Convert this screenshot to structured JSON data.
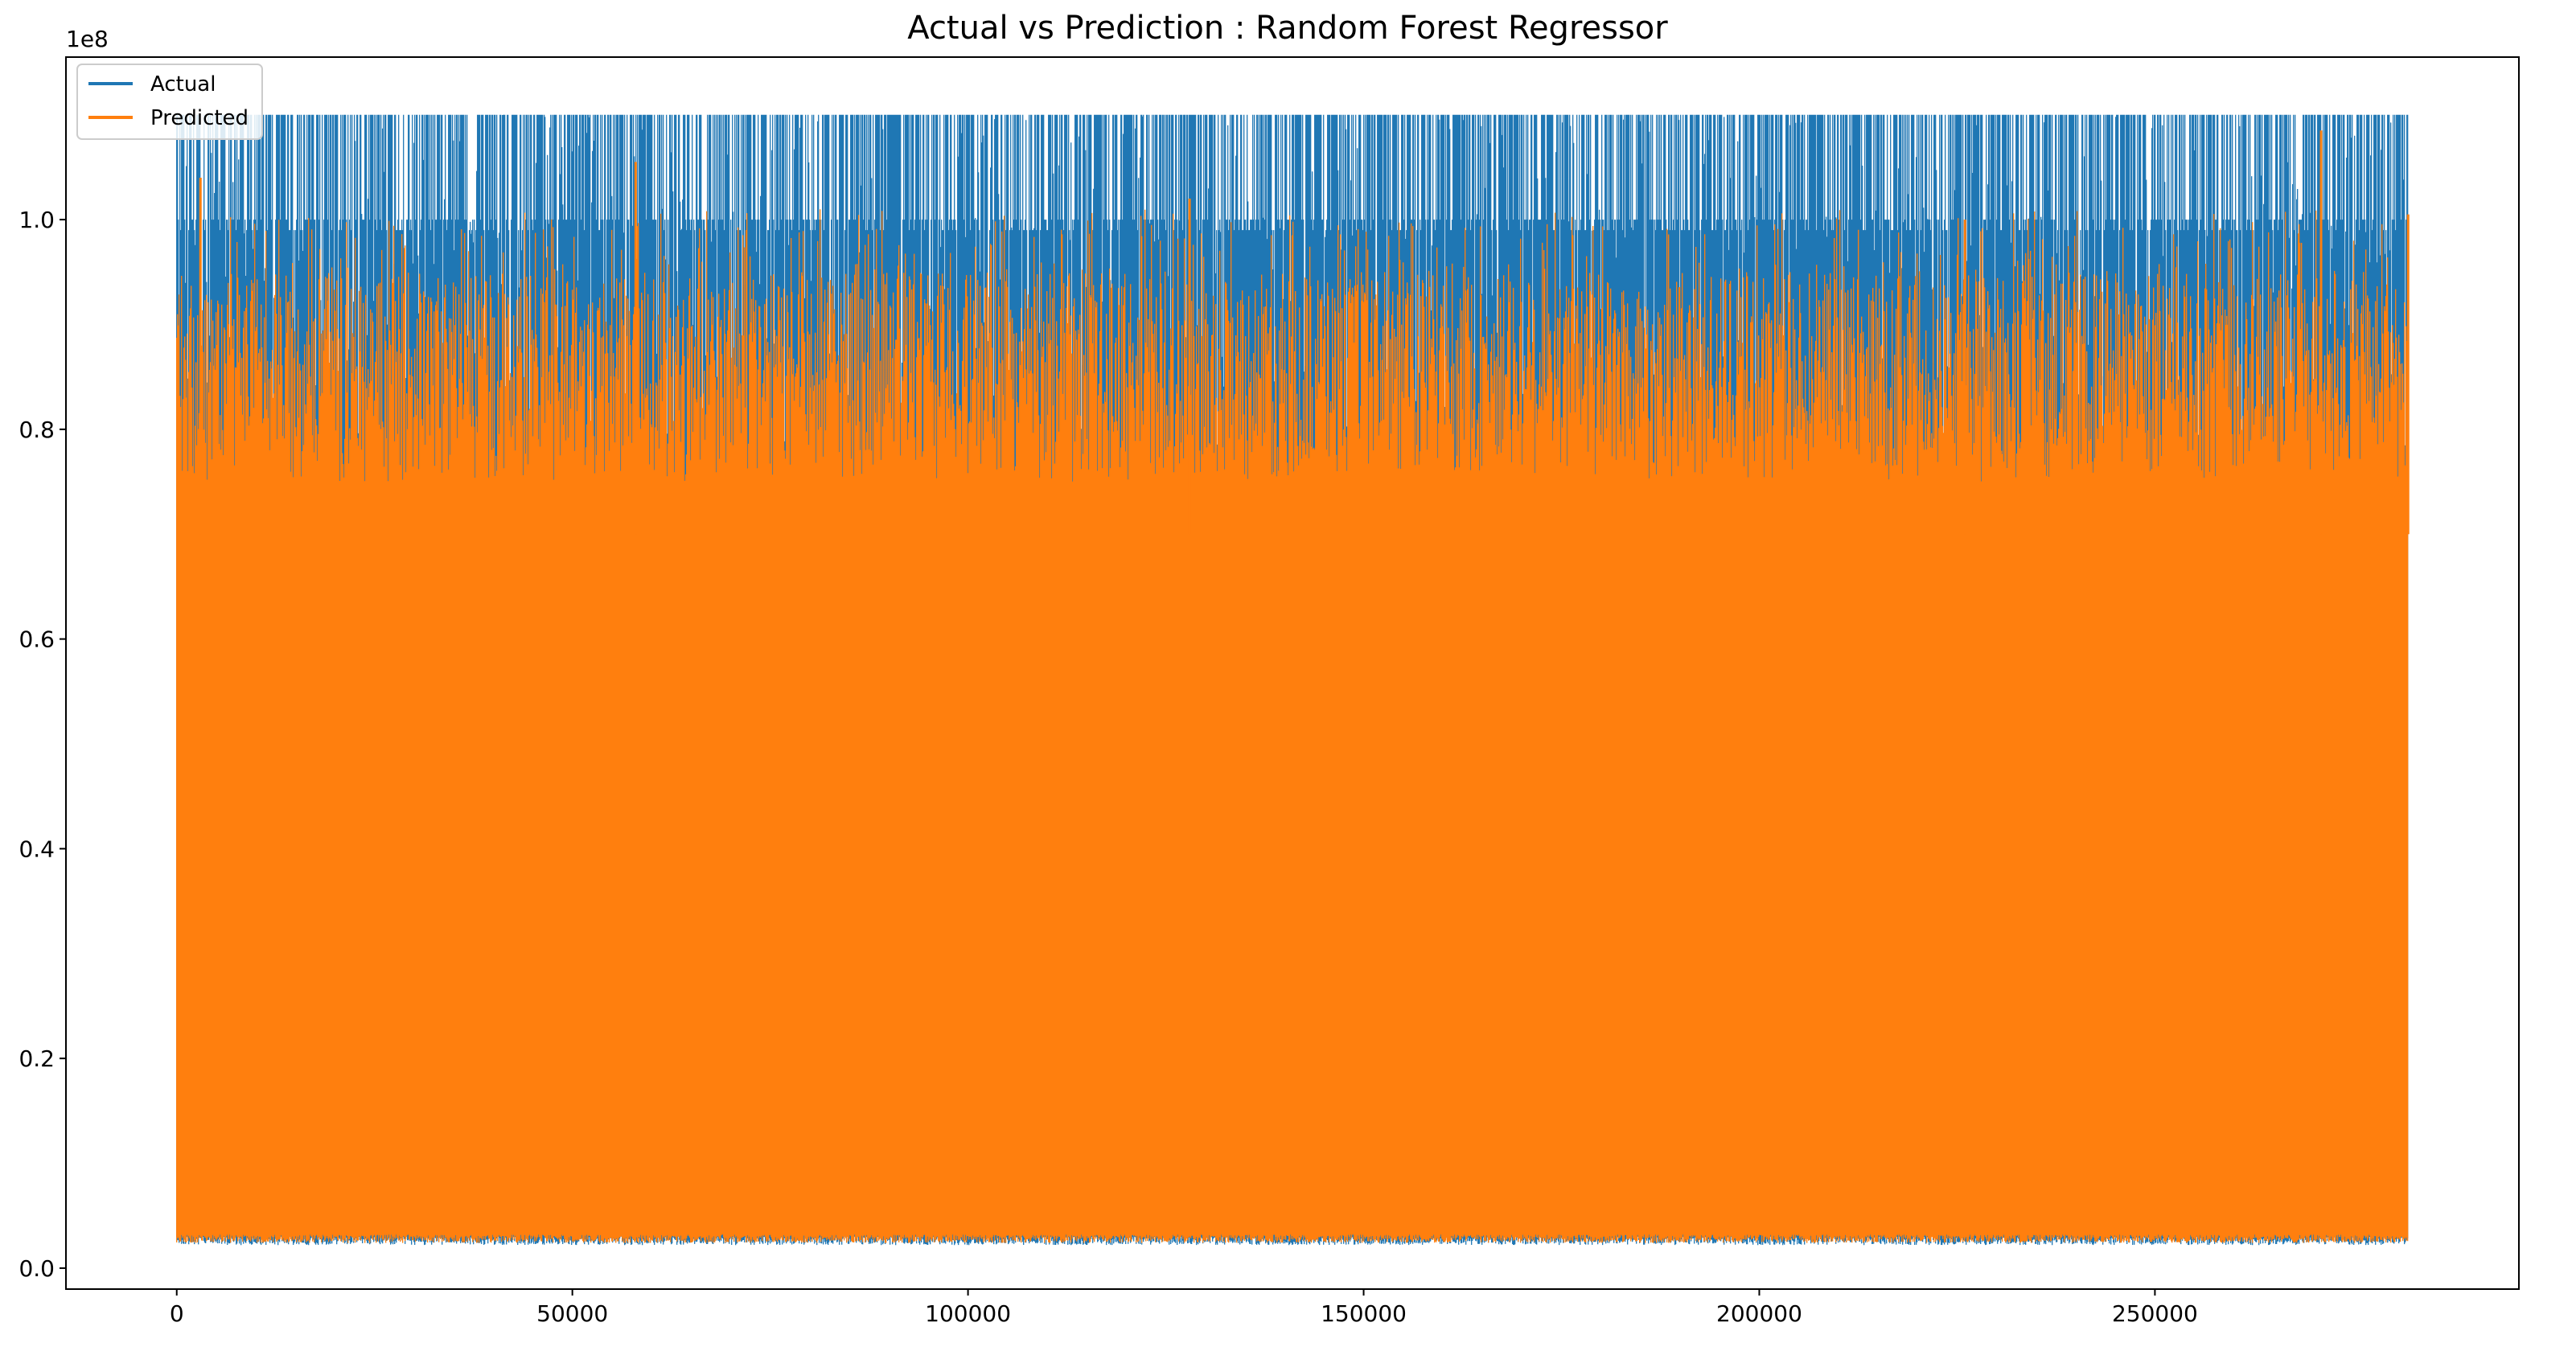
{
  "chart_data": {
    "type": "line",
    "title": "Actual vs Prediction : Random Forest Regressor",
    "xlabel": "",
    "ylabel": "",
    "y_offset_text": "1e8",
    "xlim": [
      -14000,
      296000
    ],
    "ylim": [
      -0.02,
      1.155
    ],
    "x_ticks": [
      0,
      50000,
      100000,
      150000,
      200000,
      250000
    ],
    "x_tick_labels": [
      "0",
      "50000",
      "100000",
      "150000",
      "200000",
      "250000"
    ],
    "y_ticks": [
      0.0,
      0.2,
      0.4,
      0.6,
      0.8,
      1.0
    ],
    "y_tick_labels": [
      "0.0",
      "0.2",
      "0.4",
      "0.6",
      "0.8",
      "1.0"
    ],
    "n_points": 282000,
    "grid": false,
    "legend_position": "upper-left",
    "series": [
      {
        "name": "Actual",
        "color": "#1f77b4",
        "min": 0.022,
        "max": 1.1,
        "typical_upper_envelope": [
          0.78,
          1.1
        ],
        "common_peak_values": [
          1.1,
          1.0,
          0.99
        ]
      },
      {
        "name": "Predicted",
        "color": "#ff7f0e",
        "min": 0.024,
        "max": 1.085,
        "typical_upper_envelope": [
          0.75,
          0.95
        ],
        "notable_peaks": [
          {
            "x": 3000,
            "y": 1.04
          },
          {
            "x": 58000,
            "y": 1.055
          },
          {
            "x": 128000,
            "y": 1.02
          },
          {
            "x": 226000,
            "y": 1.0
          },
          {
            "x": 271000,
            "y": 1.085
          },
          {
            "x": 282000,
            "y": 1.005
          }
        ]
      }
    ]
  }
}
